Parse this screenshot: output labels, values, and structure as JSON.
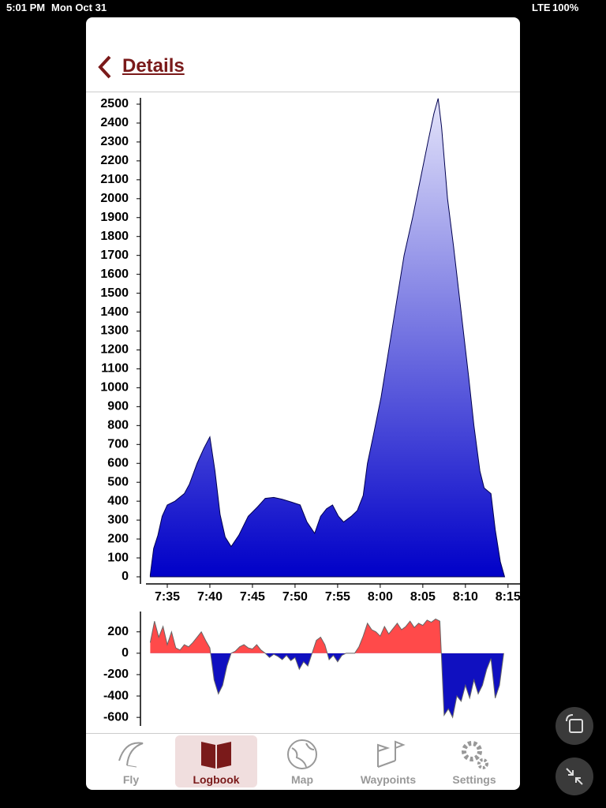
{
  "status_bar": {
    "time": "5:01 PM",
    "date": "Mon Oct 31",
    "network": "LTE",
    "battery": "100%"
  },
  "header": {
    "title": "Details"
  },
  "chart_data": [
    {
      "type": "area",
      "x": [
        453,
        453.4,
        453.9,
        454.4,
        455,
        455.9,
        457,
        457.6,
        458.5,
        459.3,
        460,
        460.6,
        461.2,
        461.8,
        462.5,
        463.4,
        464.5,
        465.6,
        466.5,
        467.5,
        468.5,
        469.6,
        470.6,
        471.4,
        472.3,
        473,
        473.7,
        474.4,
        475.1,
        475.7,
        476.6,
        477.3,
        478,
        478.5,
        479.2,
        480.1,
        481,
        481.9,
        482.8,
        483.8,
        484.7,
        485.6,
        486.3,
        486.8,
        487.2,
        487.9,
        488.6,
        489.5,
        490.4,
        491,
        491.7,
        492.2,
        493,
        493.5,
        494.1,
        494.6
      ],
      "values": [
        10,
        150,
        220,
        320,
        380,
        400,
        440,
        490,
        600,
        680,
        740,
        560,
        330,
        210,
        160,
        220,
        320,
        370,
        415,
        420,
        410,
        395,
        380,
        290,
        230,
        320,
        360,
        380,
        320,
        290,
        320,
        350,
        430,
        600,
        750,
        950,
        1200,
        1450,
        1700,
        1900,
        2100,
        2300,
        2450,
        2530,
        2380,
        2000,
        1750,
        1400,
        1050,
        800,
        560,
        470,
        440,
        250,
        80,
        0
      ],
      "xlim": [
        452.5,
        496.5
      ],
      "xticks": [
        {
          "value": 455,
          "label": "7:35"
        },
        {
          "value": 460,
          "label": "7:40"
        },
        {
          "value": 465,
          "label": "7:45"
        },
        {
          "value": 470,
          "label": "7:50"
        },
        {
          "value": 475,
          "label": "7:55"
        },
        {
          "value": 480,
          "label": "8:00"
        },
        {
          "value": 485,
          "label": "8:05"
        },
        {
          "value": 490,
          "label": "8:10"
        },
        {
          "value": 495,
          "label": "8:15"
        }
      ],
      "ylim": [
        0,
        2500
      ],
      "yticks": [
        0,
        100,
        200,
        300,
        400,
        500,
        600,
        700,
        800,
        900,
        1000,
        1100,
        1200,
        1300,
        1400,
        1500,
        1600,
        1700,
        1800,
        1900,
        2000,
        2100,
        2200,
        2300,
        2400,
        2500
      ],
      "color_top": "#e4e4fa",
      "color_bottom": "#0000c8",
      "line_color": "#000050"
    },
    {
      "type": "diverging_area",
      "x": [
        453,
        453.5,
        454,
        454.5,
        455,
        455.5,
        456,
        456.5,
        457,
        457.5,
        458,
        458.5,
        459,
        459.5,
        460,
        460.5,
        461,
        461.5,
        462,
        462.5,
        463,
        463.5,
        464,
        464.5,
        465,
        465.5,
        466,
        466.5,
        467,
        467.5,
        468,
        468.5,
        469,
        469.5,
        470,
        470.5,
        471,
        471.5,
        472,
        472.5,
        473,
        473.5,
        474,
        474.5,
        475,
        475.5,
        476,
        476.5,
        477,
        477.5,
        478,
        478.5,
        479,
        479.5,
        480,
        480.5,
        481,
        481.5,
        482,
        482.5,
        483,
        483.5,
        484,
        484.5,
        485,
        485.5,
        486,
        486.5,
        487,
        487.5,
        488,
        488.5,
        489,
        489.5,
        490,
        490.5,
        491,
        491.5,
        492,
        492.5,
        493,
        493.5,
        494,
        494.5
      ],
      "values": [
        100,
        300,
        150,
        250,
        80,
        200,
        50,
        30,
        80,
        60,
        100,
        150,
        200,
        120,
        50,
        -250,
        -380,
        -300,
        -120,
        0,
        20,
        60,
        80,
        50,
        40,
        80,
        30,
        0,
        -40,
        -10,
        -30,
        -60,
        -20,
        -70,
        -40,
        -150,
        -80,
        -120,
        0,
        120,
        150,
        80,
        -60,
        -20,
        -80,
        -20,
        0,
        0,
        0,
        60,
        160,
        280,
        220,
        200,
        160,
        250,
        180,
        230,
        280,
        220,
        250,
        300,
        240,
        280,
        260,
        310,
        290,
        320,
        300,
        -580,
        -520,
        -600,
        -400,
        -450,
        -300,
        -420,
        -250,
        -380,
        -300,
        -150,
        -50,
        -420,
        -300,
        0
      ],
      "xlim": [
        452.5,
        496.5
      ],
      "ylim": [
        -680,
        390
      ],
      "yticks": [
        -600,
        -400,
        -200,
        0,
        200
      ],
      "positive_color": "#ff4a4a",
      "negative_color": "#1010c0",
      "line_color": "#666666"
    }
  ],
  "tabs": [
    {
      "label": "Fly"
    },
    {
      "label": "Logbook"
    },
    {
      "label": "Map"
    },
    {
      "label": "Waypoints"
    },
    {
      "label": "Settings"
    }
  ]
}
